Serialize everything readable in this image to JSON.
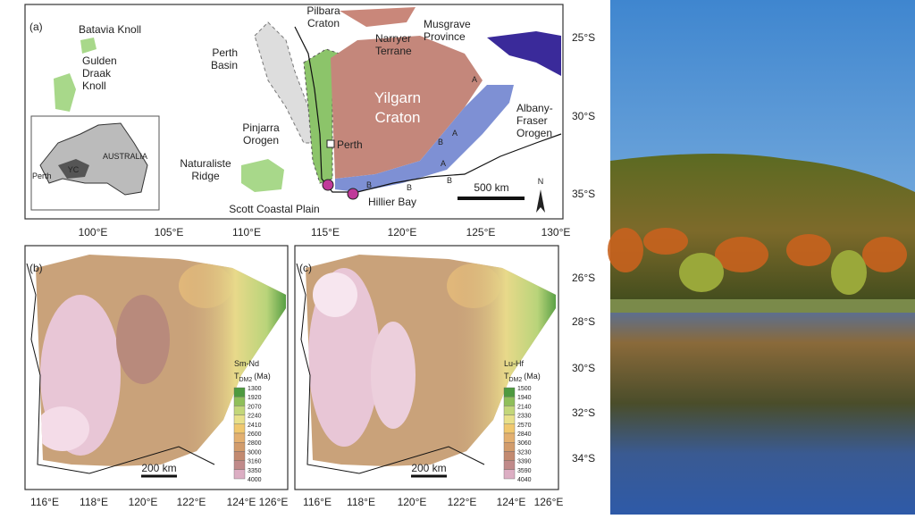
{
  "panel_a": {
    "label": "(a)",
    "places": [
      [
        "Batavia Knoll"
      ],
      [
        "Gulden",
        "Draak",
        "Knoll"
      ],
      [
        "Perth",
        "Basin"
      ],
      [
        "Pilbara",
        "Craton"
      ],
      [
        "Narryer",
        "Terrane"
      ],
      [
        "Musgrave",
        "Province"
      ],
      [
        "Yilgarn",
        "Craton"
      ],
      [
        "Albany-",
        "Fraser",
        "Orogen"
      ],
      [
        "Pinjarra",
        "Orogen"
      ],
      [
        "Perth"
      ],
      [
        "Naturaliste",
        "Ridge"
      ],
      [
        "Scott Coastal Plain"
      ],
      [
        "Hillier Bay"
      ]
    ],
    "segment_labels": [
      "A",
      "A",
      "A",
      "B",
      "B",
      "B",
      "B"
    ],
    "inset": [
      "AUSTRALIA",
      "YC",
      "Perth"
    ],
    "scale": "500 km",
    "north": "N",
    "lat_ticks": [
      "25°S",
      "30°S",
      "35°S"
    ],
    "lon_ticks": [
      "100°E",
      "105°E",
      "110°E",
      "115°E",
      "120°E",
      "125°E",
      "130°E"
    ]
  },
  "panel_b": {
    "label": "(b)",
    "method": "Sm-Nd",
    "legend_title": {
      "symbol": "T",
      "subscript": "DM2",
      "unit": "(Ma)"
    },
    "legend_values": [
      1300,
      1920,
      2070,
      2240,
      2410,
      2600,
      2800,
      3000,
      3160,
      3350,
      4000
    ],
    "scale": "200 km",
    "lon_ticks": [
      "116°E",
      "118°E",
      "120°E",
      "122°E",
      "124°E",
      "126°E"
    ]
  },
  "panel_c": {
    "label": "(c)",
    "method": "Lu-Hf",
    "legend_title": {
      "symbol": "T",
      "subscript": "DM2",
      "unit": "(Ma)"
    },
    "legend_values": [
      1500,
      1940,
      2140,
      2330,
      2570,
      2840,
      3060,
      3230,
      3390,
      3590,
      4040
    ],
    "scale": "200 km",
    "lon_ticks": [
      "116°E",
      "118°E",
      "120°E",
      "122°E",
      "124°E",
      "126°E"
    ]
  },
  "lat_ticks_bc": [
    "26°S",
    "28°S",
    "30°S",
    "32°S",
    "34°S"
  ]
}
